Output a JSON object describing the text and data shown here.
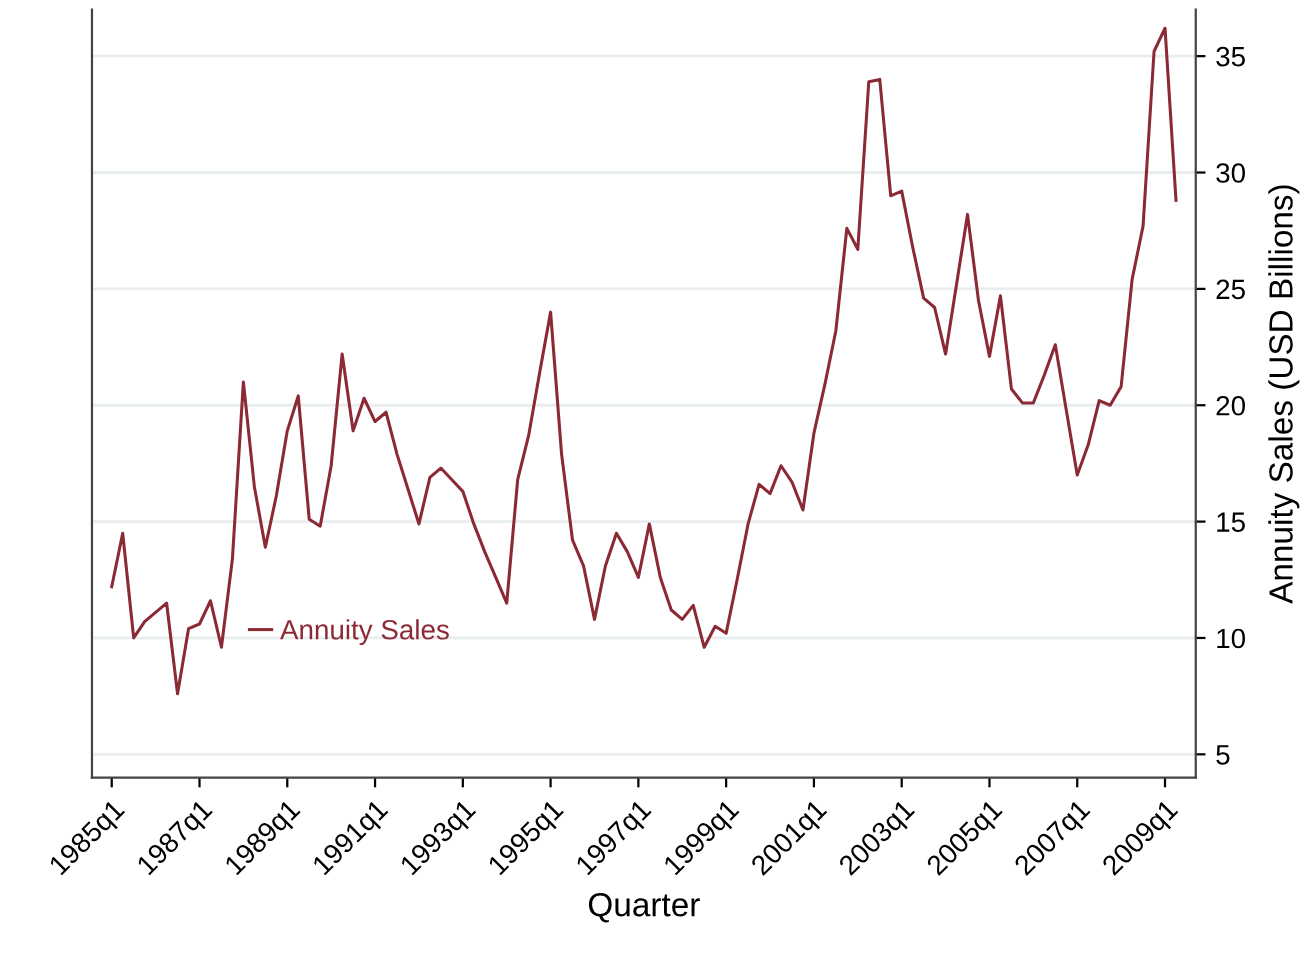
{
  "chart_data": {
    "type": "line",
    "xlabel": "Quarter",
    "ylabel": "Annuity Sales (USD Billions)",
    "categories": [
      "1985q1",
      null,
      null,
      null,
      null,
      null,
      null,
      null,
      "1987q1",
      null,
      null,
      null,
      null,
      null,
      null,
      null,
      "1989q1",
      null,
      null,
      null,
      null,
      null,
      null,
      null,
      "1991q1",
      null,
      null,
      null,
      null,
      null,
      null,
      null,
      "1993q1",
      null,
      null,
      null,
      null,
      null,
      null,
      null,
      "1995q1",
      null,
      null,
      null,
      null,
      null,
      null,
      null,
      "1997q1",
      null,
      null,
      null,
      null,
      null,
      null,
      null,
      "1999q1",
      null,
      null,
      null,
      null,
      null,
      null,
      null,
      "2001q1",
      null,
      null,
      null,
      null,
      null,
      null,
      null,
      "2003q1",
      null,
      null,
      null,
      null,
      null,
      null,
      null,
      "2005q1",
      null,
      null,
      null,
      null,
      null,
      null,
      null,
      "2007q1",
      null,
      null,
      null,
      null,
      null,
      null,
      null,
      "2009q1",
      null
    ],
    "series": [
      {
        "name": "Annuity Sales",
        "color": "#8b2a35",
        "values": [
          12.2,
          14.5,
          10.0,
          10.7,
          11.1,
          11.5,
          7.6,
          10.4,
          10.6,
          11.6,
          9.6,
          13.4,
          21.0,
          16.5,
          13.9,
          16.1,
          18.9,
          20.4,
          15.1,
          14.8,
          17.4,
          22.2,
          18.9,
          20.3,
          19.3,
          19.7,
          17.9,
          16.4,
          14.9,
          16.9,
          17.3,
          16.8,
          16.3,
          14.9,
          13.7,
          12.6,
          11.5,
          16.8,
          18.7,
          21.4,
          24.0,
          17.9,
          14.2,
          13.1,
          10.8,
          13.1,
          14.5,
          13.7,
          12.6,
          14.9,
          12.6,
          11.2,
          10.8,
          11.4,
          9.6,
          10.5,
          10.2,
          12.5,
          14.9,
          16.6,
          16.2,
          17.4,
          16.7,
          15.5,
          18.8,
          20.9,
          23.2,
          27.6,
          26.7,
          33.9,
          34.0,
          29.0,
          29.2,
          26.8,
          24.6,
          24.2,
          22.2,
          25.2,
          28.2,
          24.5,
          22.1,
          24.7,
          20.7,
          20.1,
          20.1,
          21.3,
          22.6,
          19.8,
          17.0,
          18.3,
          20.2,
          20.0,
          20.8,
          25.4,
          27.7,
          35.2,
          36.2,
          28.8
        ]
      }
    ],
    "ylim": [
      4,
      37
    ],
    "yticks": [
      5,
      10,
      15,
      20,
      25,
      30,
      35
    ],
    "grid": "y",
    "legend": "bottom left",
    "marker": "none",
    "line_style": "solid"
  }
}
